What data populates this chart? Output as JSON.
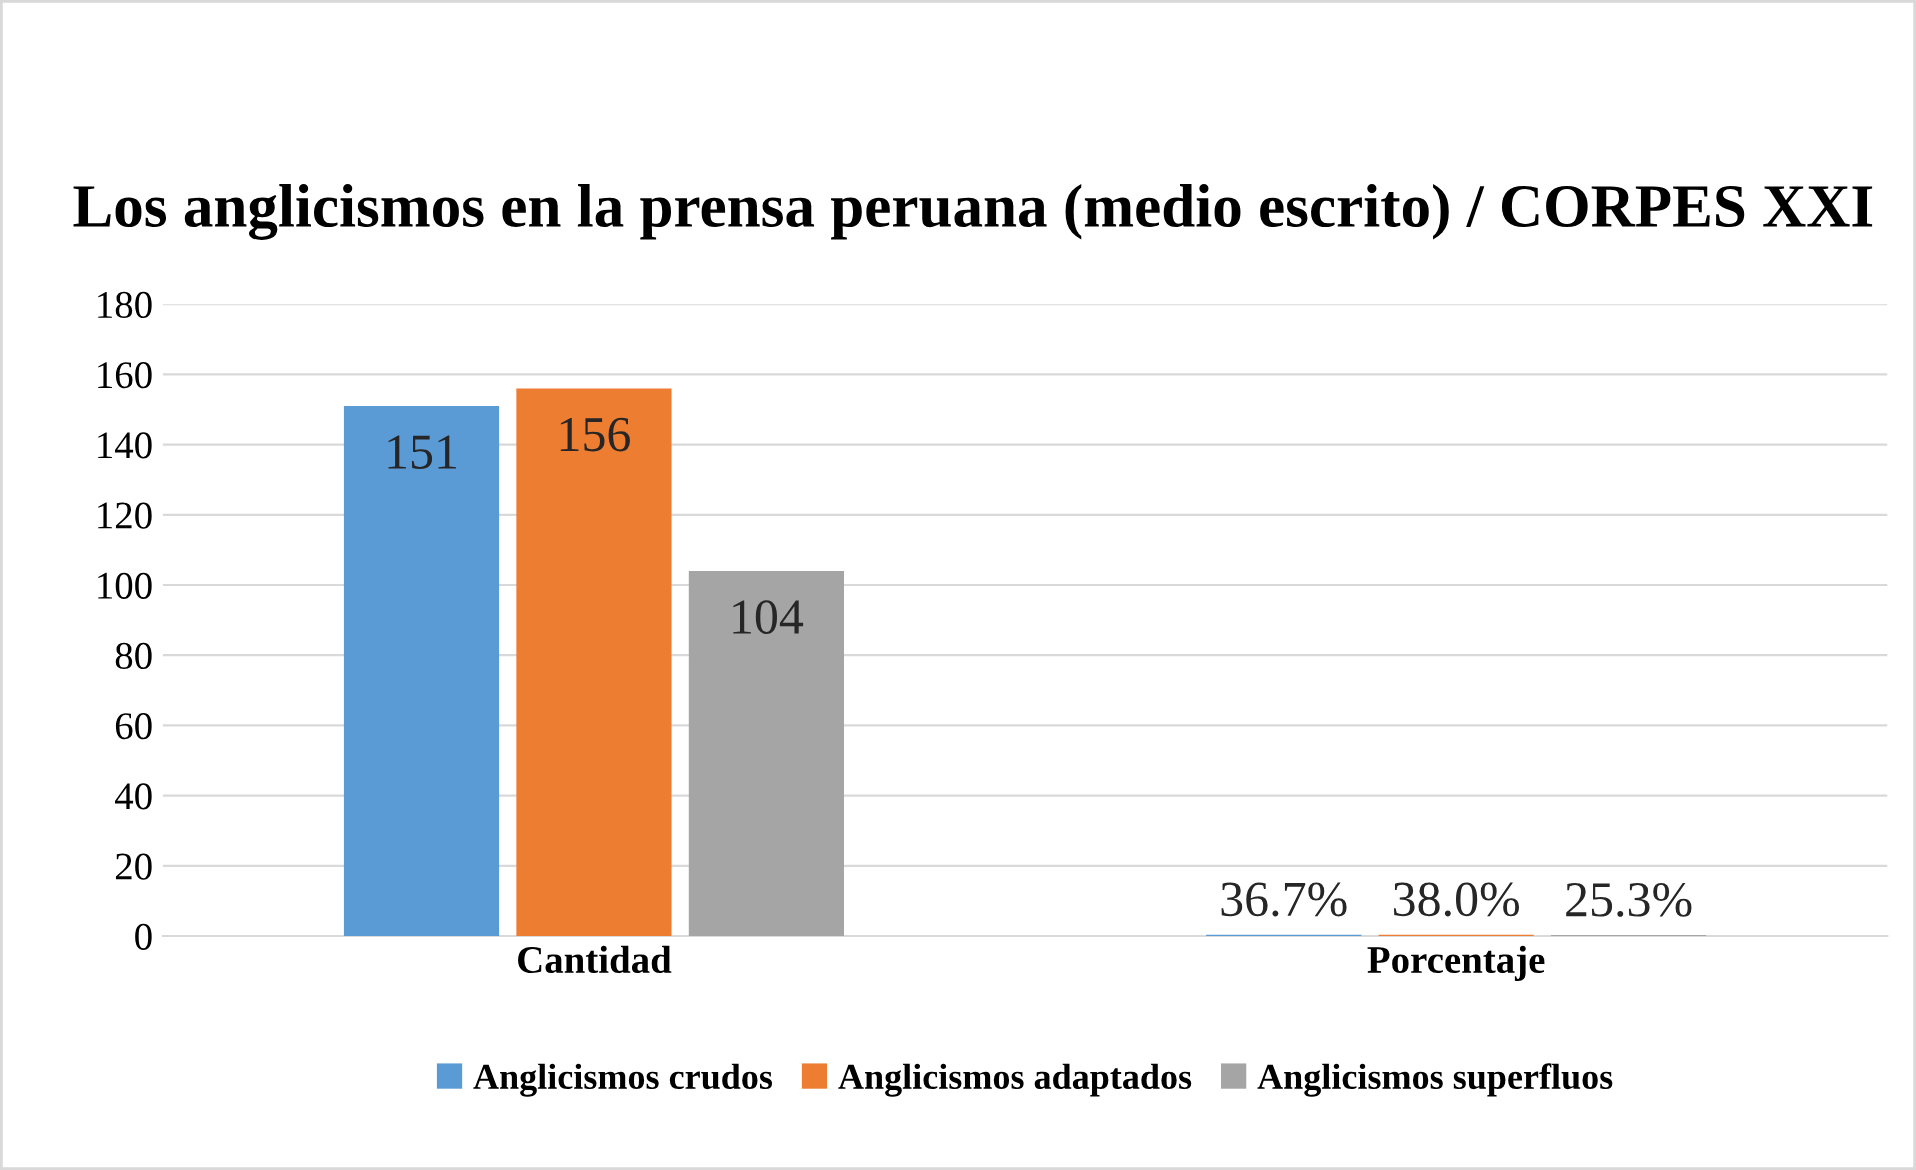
{
  "chart_data": {
    "type": "bar",
    "title": "Los anglicismos en la prensa peruana (medio escrito) / CORPES XXI",
    "categories": [
      "Cantidad",
      "Porcentaje"
    ],
    "series": [
      {
        "name": "Anglicismos crudos",
        "color": "#5b9bd5",
        "values": [
          151,
          0.367
        ],
        "value_labels": [
          "151",
          "36.7%"
        ]
      },
      {
        "name": "Anglicismos adaptados",
        "color": "#ed7d31",
        "values": [
          156,
          0.38
        ],
        "value_labels": [
          "156",
          "38.0%"
        ]
      },
      {
        "name": "Anglicismos superfluos",
        "color": "#a5a5a5",
        "values": [
          104,
          0.253
        ],
        "value_labels": [
          "104",
          "25.3%"
        ]
      }
    ],
    "ylim": [
      0,
      180
    ],
    "yticks": [
      0,
      20,
      40,
      60,
      80,
      100,
      120,
      140,
      160,
      180
    ],
    "grid": "y",
    "legend": "bottom"
  }
}
